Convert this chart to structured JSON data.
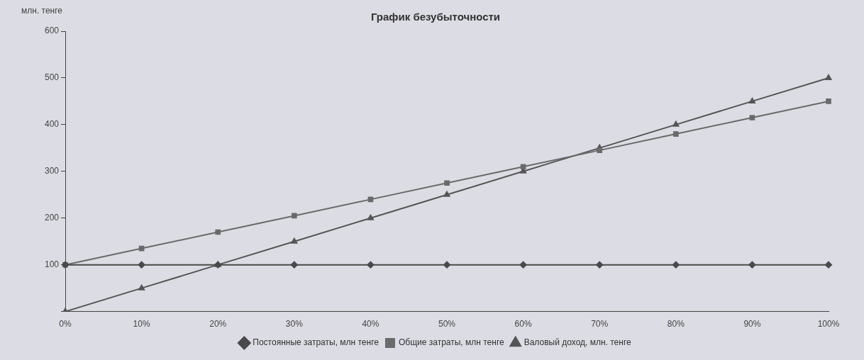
{
  "chart_data": {
    "type": "line",
    "title": "График безубыточности",
    "ylabel": "млн. тенге",
    "categories": [
      "0%",
      "10%",
      "20%",
      "30%",
      "40%",
      "50%",
      "60%",
      "70%",
      "80%",
      "90%",
      "100%"
    ],
    "series": [
      {
        "name": "Постоянные затраты, млн тенге",
        "color": "#4a4a4a",
        "marker": "diamond",
        "values": [
          100,
          100,
          100,
          100,
          100,
          100,
          100,
          100,
          100,
          100,
          100
        ]
      },
      {
        "name": "Общие затраты, млн тенге",
        "color": "#6a6a6a",
        "marker": "square",
        "values": [
          100,
          135,
          170,
          205,
          240,
          275,
          310,
          345,
          380,
          415,
          450
        ]
      },
      {
        "name": "Валовый доход, млн. тенге",
        "color": "#555555",
        "marker": "triangle",
        "values": [
          0,
          50,
          100,
          150,
          200,
          250,
          300,
          350,
          400,
          450,
          500
        ]
      }
    ],
    "ylim": [
      0,
      600
    ],
    "yticks": [
      {
        "value": 0,
        "label": null
      },
      100,
      200,
      300,
      400,
      500,
      600
    ],
    "grid": false,
    "legend": "bottom"
  }
}
